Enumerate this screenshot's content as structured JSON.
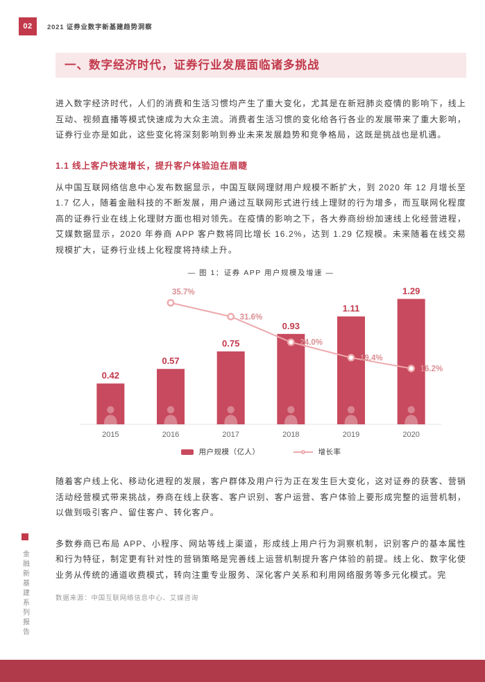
{
  "page": {
    "page_number": "02",
    "header_title": "2021 证券业数字新基建趋势洞察",
    "side_label": "金融新基建系列报告",
    "data_source": "数据来源：中国互联网络信息中心、艾媒咨询"
  },
  "section": {
    "title": "一、数字经济时代，证券行业发展面临诸多挑战",
    "intro_paragraph": "进入数字经济时代，人们的消费和生活习惯均产生了重大变化，尤其是在新冠肺炎疫情的影响下，线上互动、视频直播等模式快速成为大众主流。消费者生活习惯的变化给各行各业的发展带来了重大影响，证券行业亦是如此，这些变化将深刻影响到券业未来发展趋势和竞争格局，这既是挑战也是机遇。",
    "subsection_title": "1.1 线上客户快速增长，提升客户体验迫在眉睫",
    "subsection_paragraph": "从中国互联网络信息中心发布数据显示，中国互联网理财用户规模不断扩大，到 2020 年 12 月增长至 1.7 亿人，随着金融科技的不断发展，用户通过互联网形式进行线上理财的行为增多，而互联网化程度高的证券行业在线上化理财方面也相对领先。在疫情的影响之下，各大券商纷纷加速线上化经营进程，艾媒数据显示，2020 年券商 APP 客户数将同比增长 16.2%，达到 1.29 亿规模。未来随着在线交易规模扩大，证券行业线上化程度将持续上升。",
    "paragraph_after_chart_1": "随着客户线上化、移动化进程的发展，客户群体及用户行为正在发生巨大变化，这对证券的获客、营销活动经营模式带来挑战，券商在线上获客、客户识别、客户运营、客户体验上要形成完整的运营机制，以做到吸引客户、留住客户、转化客户。",
    "paragraph_after_chart_2": "多数券商已布局 APP、小程序、网站等线上渠道，形成线上用户行为洞察机制，识别客户的基本属性和行为特征，制定更有针对性的营销策略是完善线上运营机制提升客户体验的前提。线上化、数字化使业务从传统的通道收费模式，转向注重专业服务、深化客户关系和利用网络服务等多元化模式。完"
  },
  "chart": {
    "caption": "— 图 1：证券 APP 用户规模及增速 —",
    "legend_bar_label": "用户规模（亿人）",
    "legend_line_label": "增长率"
  },
  "chart_data": {
    "type": "bar",
    "title": "图1：证券 APP 用户规模及增速",
    "categories": [
      "2015",
      "2016",
      "2017",
      "2018",
      "2019",
      "2020"
    ],
    "series": [
      {
        "name": "用户规模（亿人）",
        "type": "bar",
        "unit": "亿人",
        "values": [
          0.42,
          0.57,
          0.75,
          0.93,
          1.11,
          1.29
        ]
      },
      {
        "name": "增长率",
        "type": "line",
        "unit": "%",
        "values": [
          null,
          35.7,
          31.6,
          24.0,
          19.4,
          16.2
        ]
      }
    ],
    "xlabel": "",
    "ylabel": "",
    "ylim": [
      0,
      1.4
    ],
    "grid": false,
    "legend_position": "bottom"
  },
  "colors": {
    "accent": "#C2394B",
    "bar": "#C84A5E",
    "line": "#EDA9AC",
    "line_label": "#DB8F94",
    "title_bg": "#F8E8EA",
    "footer_bar": "#B13A4A"
  }
}
